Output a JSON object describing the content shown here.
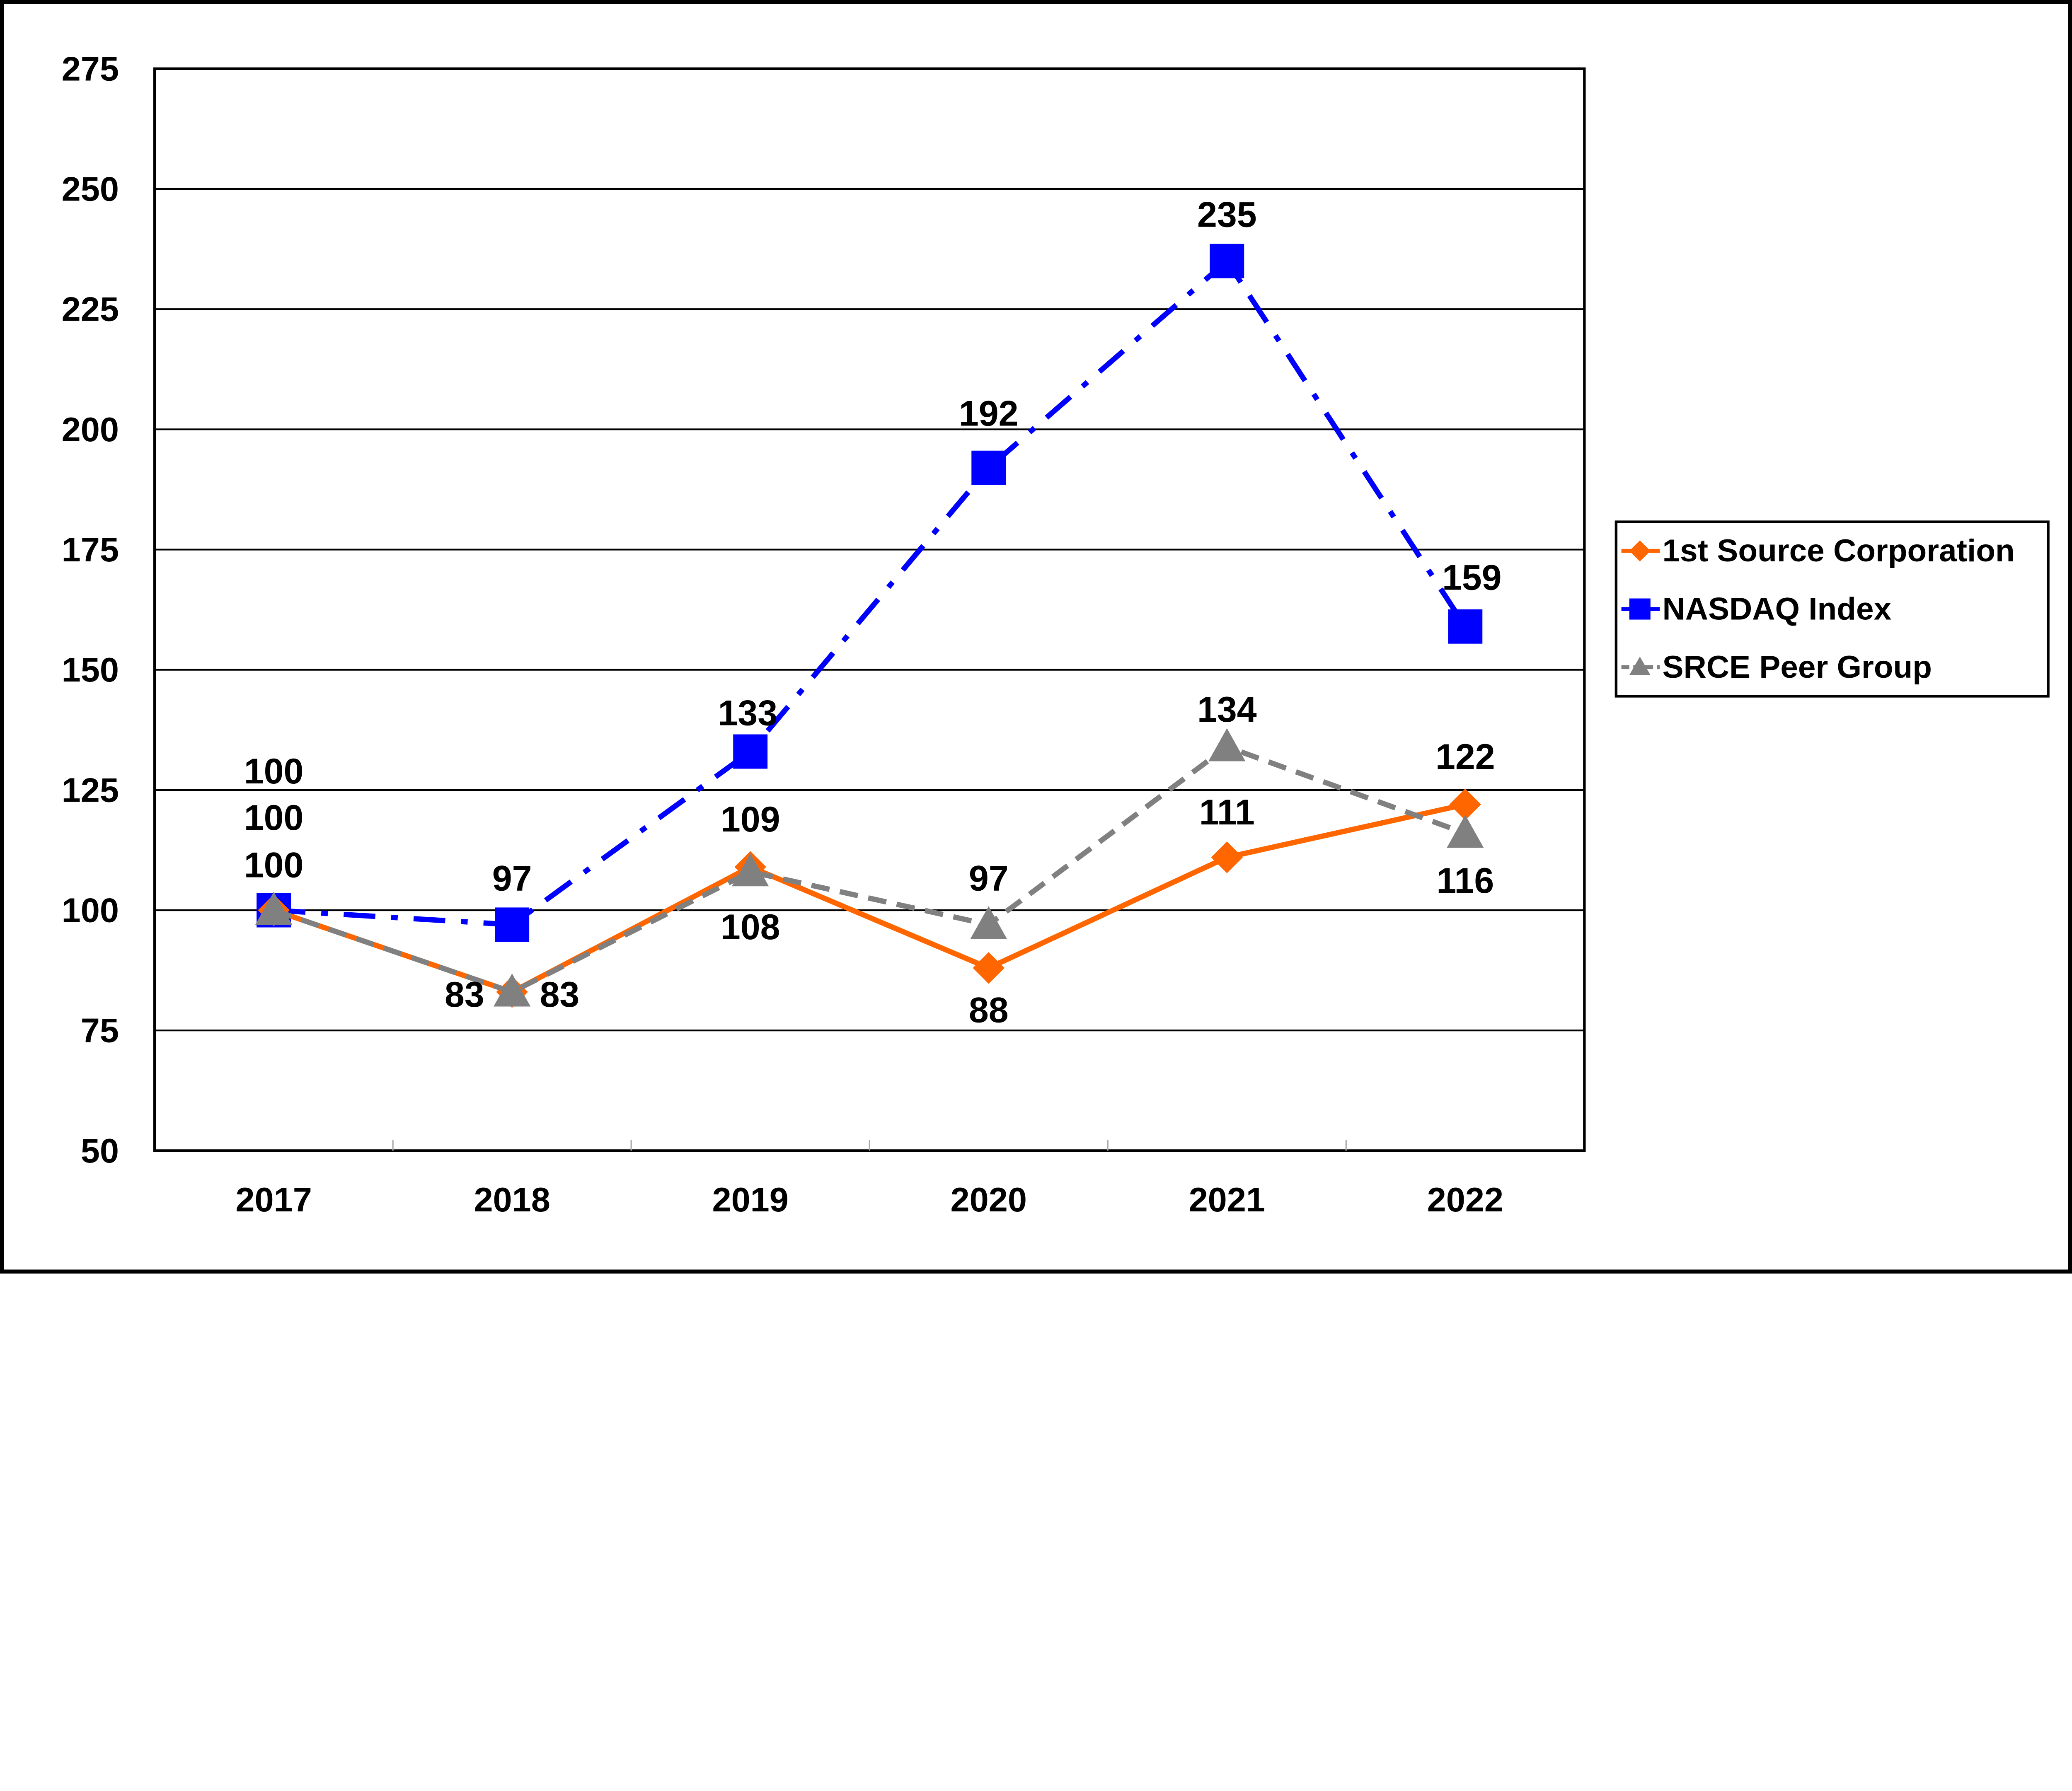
{
  "chart_data": {
    "type": "line",
    "title": "",
    "xlabel": "",
    "ylabel": "",
    "categories": [
      "2017",
      "2018",
      "2019",
      "2020",
      "2021",
      "2022"
    ],
    "ylim": [
      50,
      275
    ],
    "yticks": [
      50,
      75,
      100,
      125,
      150,
      175,
      200,
      225,
      250,
      275
    ],
    "grid": true,
    "legend_position": "right",
    "series": [
      {
        "name": "1st Source Corporation",
        "values": [
          100,
          83,
          109,
          88,
          111,
          122
        ],
        "color": "#FF6600",
        "marker": "diamond",
        "line": "solid"
      },
      {
        "name": "NASDAQ Index",
        "values": [
          100,
          97,
          133,
          192,
          235,
          159
        ],
        "color": "#0000FF",
        "marker": "square",
        "line": "dash-dot"
      },
      {
        "name": "SRCE Peer Group",
        "values": [
          100,
          83,
          108,
          97,
          134,
          116
        ],
        "color": "#808080",
        "marker": "triangle",
        "line": "dashed"
      }
    ]
  }
}
